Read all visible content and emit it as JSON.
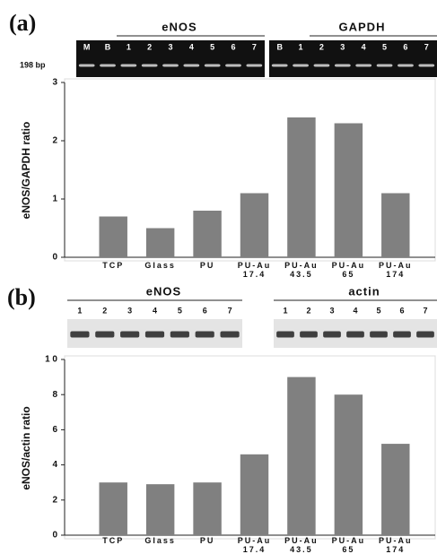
{
  "panels": [
    {
      "label": "(a)",
      "size_marker": "198 bp",
      "blots": [
        {
          "title": "eNOS",
          "lanes": [
            "M",
            "B",
            "1",
            "2",
            "3",
            "4",
            "5",
            "6",
            "7"
          ]
        },
        {
          "title": "GAPDH",
          "lanes": [
            "B",
            "1",
            "2",
            "3",
            "4",
            "5",
            "6",
            "7"
          ]
        }
      ]
    },
    {
      "label": "(b)",
      "blots": [
        {
          "title": "eNOS",
          "lanes": [
            "1",
            "2",
            "3",
            "4",
            "5",
            "6",
            "7"
          ]
        },
        {
          "title": "actin",
          "lanes": [
            "1",
            "2",
            "3",
            "4",
            "5",
            "6",
            "7"
          ]
        }
      ]
    }
  ],
  "chart_data": [
    {
      "type": "bar",
      "ylabel": "eNOS/GAPDH ratio",
      "categories": [
        "TCP",
        "Glass",
        "PU",
        "PU-Au\n17.4",
        "PU-Au\n43.5",
        "PU-Au\n65",
        "PU-Au\n174"
      ],
      "values": [
        0.7,
        0.5,
        0.8,
        1.1,
        2.4,
        2.3,
        1.1
      ],
      "color": "#808080",
      "ylim": [
        0,
        3
      ],
      "yticks": [
        0,
        1,
        2,
        3
      ]
    },
    {
      "type": "bar",
      "ylabel": "eNOS/actin ratio",
      "categories": [
        "TCP",
        "Glass",
        "PU",
        "PU-Au\n17.4",
        "PU-Au\n43.5",
        "PU-Au\n65",
        "PU-Au\n174"
      ],
      "values": [
        3.0,
        2.9,
        3.0,
        4.6,
        9.0,
        8.0,
        5.2
      ],
      "color": "#808080",
      "ylim": [
        0,
        10
      ],
      "yticks": [
        0,
        2,
        4,
        6,
        8,
        {
          "value": 10,
          "label": "1 0"
        }
      ]
    }
  ]
}
